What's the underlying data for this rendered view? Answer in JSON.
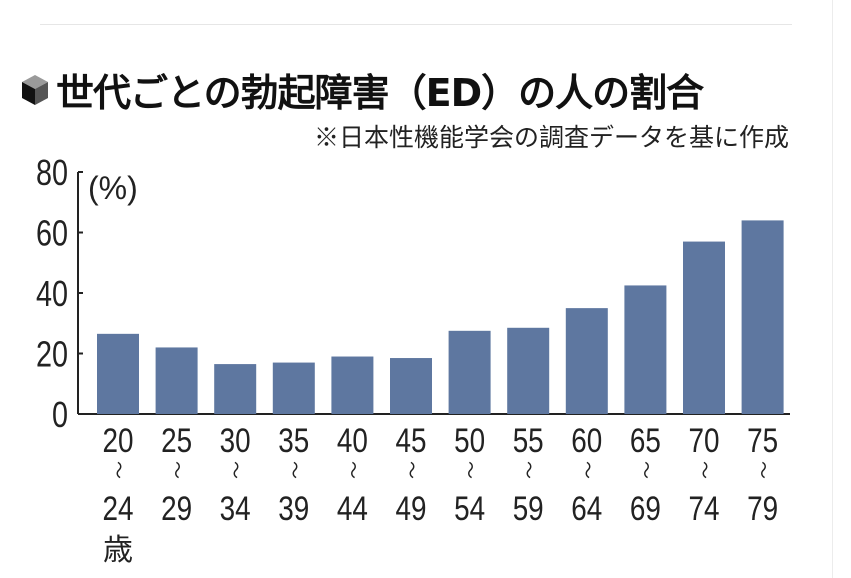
{
  "title": "世代ごとの勃起障害（ED）の人の割合",
  "subtitle": "※日本性機能学会の調査データを基に作成",
  "colors": {
    "bar": "#5e77a0",
    "axis": "#222222"
  },
  "chart_data": {
    "type": "bar",
    "title": "世代ごとの勃起障害（ED）の人の割合",
    "ylabel": "(%)",
    "xlabel": "",
    "unit_label": "歳",
    "ylim": [
      0,
      80
    ],
    "yticks": [
      0,
      20,
      40,
      60,
      80
    ],
    "categories": [
      {
        "from": "20",
        "to": "24"
      },
      {
        "from": "25",
        "to": "29"
      },
      {
        "from": "30",
        "to": "34"
      },
      {
        "from": "35",
        "to": "39"
      },
      {
        "from": "40",
        "to": "44"
      },
      {
        "from": "45",
        "to": "49"
      },
      {
        "from": "50",
        "to": "54"
      },
      {
        "from": "55",
        "to": "59"
      },
      {
        "from": "60",
        "to": "64"
      },
      {
        "from": "65",
        "to": "69"
      },
      {
        "from": "70",
        "to": "74"
      },
      {
        "from": "75",
        "to": "79"
      }
    ],
    "range_mark": "～",
    "values": [
      26.5,
      22,
      16.5,
      17,
      19,
      18.5,
      27.5,
      28.5,
      35,
      42.5,
      57,
      64
    ]
  }
}
